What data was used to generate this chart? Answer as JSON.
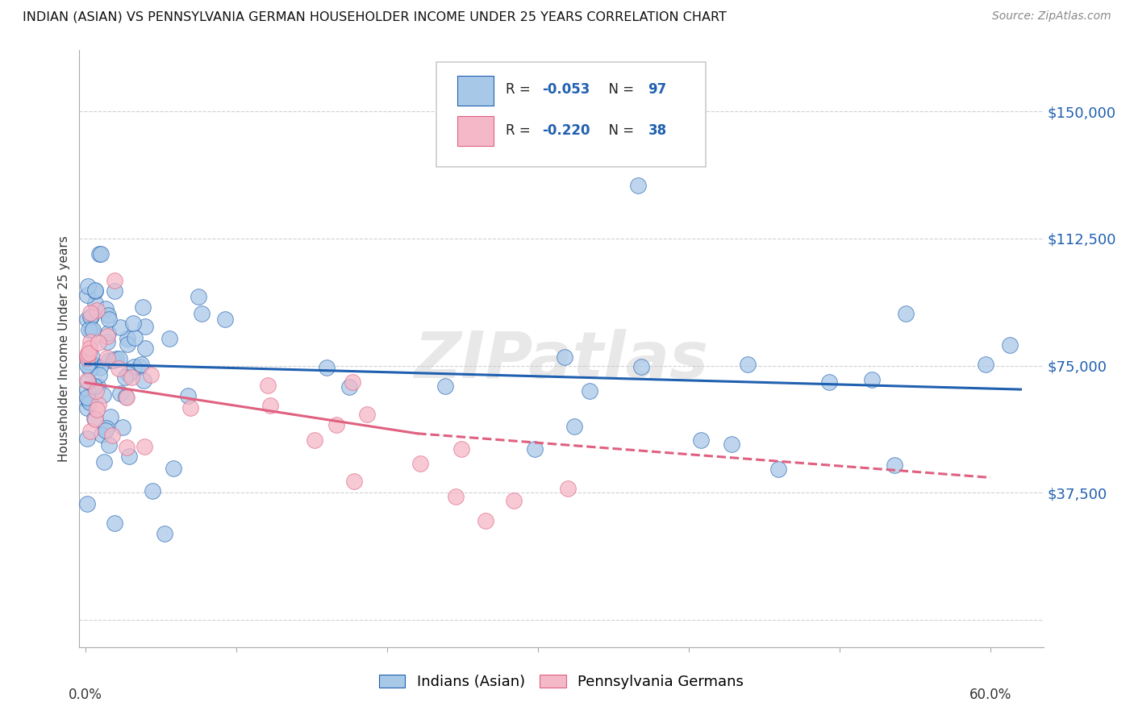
{
  "title": "INDIAN (ASIAN) VS PENNSYLVANIA GERMAN HOUSEHOLDER INCOME UNDER 25 YEARS CORRELATION CHART",
  "source": "Source: ZipAtlas.com",
  "ylabel": "Householder Income Under 25 years",
  "legend_label1": "Indians (Asian)",
  "legend_label2": "Pennsylvania Germans",
  "color_blue": "#a8c8e8",
  "color_pink": "#f4b8c8",
  "line_color_blue": "#2060b0",
  "line_color_pink": "#e06080",
  "ytick_vals": [
    0,
    37500,
    75000,
    112500,
    150000
  ],
  "ytick_labels": [
    "",
    "$37,500",
    "$75,000",
    "$112,500",
    "$150,000"
  ],
  "ymin": -8000,
  "ymax": 168000,
  "xmin": -0.004,
  "xmax": 0.635,
  "watermark": "ZIPatlas",
  "background_color": "#ffffff",
  "grid_color": "#cccccc",
  "blue_trend": [
    0.0,
    75500,
    0.62,
    68000
  ],
  "pink_trend_solid": [
    0.0,
    70000,
    0.22,
    55000
  ],
  "pink_trend_dash": [
    0.22,
    55000,
    0.6,
    42000
  ],
  "r_blue": "-0.053",
  "n_blue": "97",
  "r_pink": "-0.220",
  "n_pink": "38"
}
